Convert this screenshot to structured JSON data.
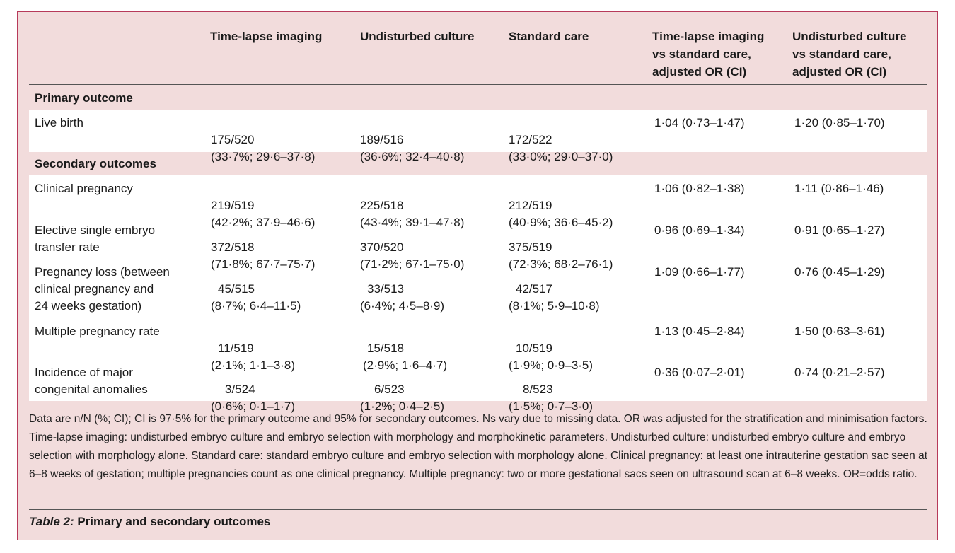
{
  "headers": {
    "time_lapse": "Time-lapse imaging",
    "undisturbed": "Undisturbed culture",
    "standard": "Standard care",
    "or_time_lapse": "Time-lapse imaging\nvs standard care,\nadjusted OR (CI)",
    "or_undisturbed": "Undisturbed culture\nvs standard care,\nadjusted OR (CI)"
  },
  "primary": {
    "title": "Primary outcome",
    "rows": [
      {
        "label": "Live birth",
        "tl_n": "175/520",
        "tl_ci": "(33·7%; 29·6–37·8)",
        "ud_n": "189/516",
        "ud_ci": "(36·6%; 32·4–40·8)",
        "sc_n": "172/522",
        "sc_ci": "(33·0%; 29·0–37·0)",
        "or_tl": "1·04 (0·73–1·47)",
        "or_ud": "1·20 (0·85–1·70)"
      }
    ]
  },
  "secondary": {
    "title": "Secondary outcomes",
    "rows": [
      {
        "label": "Clinical pregnancy",
        "tl_n": "219/519",
        "tl_ci": "(42·2%; 37·9–46·6)",
        "ud_n": "225/518",
        "ud_ci": "(43·4%; 39·1–47·8)",
        "sc_n": "212/519",
        "sc_ci": "(40·9%; 36·6–45·2)",
        "or_tl": "1·06 (0·82–1·38)",
        "or_ud": "1·11 (0·86–1·46)"
      },
      {
        "label": "Elective single embryo\ntransfer rate",
        "tl_n": "372/518",
        "tl_ci": "(71·8%; 67·7–75·7)",
        "ud_n": "370/520",
        "ud_ci": "(71·2%; 67·1–75·0)",
        "sc_n": "375/519",
        "sc_ci": "(72·3%; 68·2–76·1)",
        "or_tl": "0·96 (0·69–1·34)",
        "or_ud": "0·91 (0·65–1·27)"
      },
      {
        "label": "Pregnancy loss (between\nclinical pregnancy and\n24 weeks gestation)",
        "tl_n": "45/515",
        "tl_ci": "(8·7%; 6·4–11·5)",
        "ud_n": "33/513",
        "ud_ci": "(6·4%; 4·5–8·9)",
        "sc_n": "42/517",
        "sc_ci": "(8·1%; 5·9–10·8)",
        "or_tl": "1·09 (0·66–1·77)",
        "or_ud": "0·76 (0·45–1·29)"
      },
      {
        "label": "Multiple pregnancy rate",
        "tl_n": "11/519",
        "tl_ci": "(2·1%; 1·1–3·8)",
        "ud_n": "15/518",
        "ud_ci": "(2·9%; 1·6–4·7)",
        "sc_n": "10/519",
        "sc_ci": "(1·9%; 0·9–3·5)",
        "or_tl": "1·13 (0·45–2·84)",
        "or_ud": "1·50 (0·63–3·61)"
      },
      {
        "label": "Incidence of major\ncongenital anomalies",
        "tl_n": "3/524",
        "tl_ci": "(0·6%; 0·1–1·7)",
        "ud_n": "6/523",
        "ud_ci": "(1·2%; 0·4–2·5)",
        "sc_n": "8/523",
        "sc_ci": "(1·5%; 0·7–3·0)",
        "or_tl": "0·36 (0·07–2·01)",
        "or_ud": "0·74 (0·21–2·57)"
      }
    ]
  },
  "footnote": "Data are n/N (%; CI); CI is 97·5% for the primary outcome and 95% for secondary outcomes. Ns vary due to missing data. OR was adjusted for the stratification and minimisation factors. Time-lapse imaging: undisturbed embryo culture and embryo selection with morphology and morphokinetic parameters. Undisturbed culture: undisturbed embryo culture and embryo selection with morphology alone. Standard care: standard embryo culture and embryo selection with morphology alone. Clinical pregnancy: at least one intrauterine gestation sac seen at 6–8 weeks of gestation; multiple pregnancies count as one clinical pregnancy. Multiple pregnancy: two or more gestational sacs seen on ultrasound scan at 6–8 weeks. OR=odds ratio.",
  "caption": {
    "label": "Table 2:",
    "title": "Primary and secondary outcomes"
  }
}
